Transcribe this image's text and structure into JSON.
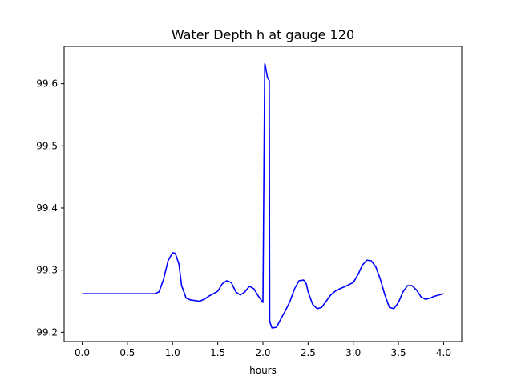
{
  "chart_data": {
    "type": "line",
    "title": "Water Depth h at gauge 120",
    "xlabel": "hours",
    "ylabel": "",
    "xlim": [
      -0.2,
      4.2
    ],
    "ylim": [
      99.185,
      99.66
    ],
    "xticks": [
      0.0,
      0.5,
      1.0,
      1.5,
      2.0,
      2.5,
      3.0,
      3.5,
      4.0
    ],
    "xtick_labels": [
      "0.0",
      "0.5",
      "1.0",
      "1.5",
      "2.0",
      "2.5",
      "3.0",
      "3.5",
      "4.0"
    ],
    "yticks": [
      99.2,
      99.3,
      99.4,
      99.5,
      99.6
    ],
    "ytick_labels": [
      "99.2",
      "99.3",
      "99.4",
      "99.5",
      "99.6"
    ],
    "grid": false,
    "line_color": "#0000ff",
    "series": [
      {
        "x": [
          0.0,
          0.2,
          0.4,
          0.6,
          0.8,
          0.85,
          0.9,
          0.95,
          1.0,
          1.03,
          1.07,
          1.1,
          1.15,
          1.2,
          1.3,
          1.35,
          1.4,
          1.5,
          1.55,
          1.6,
          1.65,
          1.7,
          1.75,
          1.8,
          1.85,
          1.9,
          1.95,
          2.0,
          2.02,
          2.025,
          2.05,
          2.07,
          2.075,
          2.08,
          2.1,
          2.15,
          2.2,
          2.25,
          2.3,
          2.35,
          2.4,
          2.45,
          2.48,
          2.5,
          2.55,
          2.6,
          2.65,
          2.7,
          2.75,
          2.8,
          2.85,
          2.9,
          3.0,
          3.05,
          3.1,
          3.15,
          3.2,
          3.25,
          3.3,
          3.35,
          3.4,
          3.45,
          3.5,
          3.55,
          3.6,
          3.65,
          3.7,
          3.75,
          3.8,
          3.85,
          3.9,
          3.95,
          4.0
        ],
        "y": [
          99.262,
          99.262,
          99.262,
          99.262,
          99.262,
          99.265,
          99.285,
          99.315,
          99.328,
          99.327,
          99.31,
          99.275,
          99.255,
          99.252,
          99.25,
          99.253,
          99.258,
          99.266,
          99.278,
          99.283,
          99.28,
          99.265,
          99.26,
          99.265,
          99.274,
          99.27,
          99.258,
          99.248,
          99.632,
          99.63,
          99.61,
          99.605,
          99.22,
          99.215,
          99.207,
          99.208,
          99.222,
          99.235,
          99.25,
          99.27,
          99.283,
          99.284,
          99.278,
          99.265,
          99.245,
          99.238,
          99.24,
          99.25,
          99.26,
          99.266,
          99.27,
          99.273,
          99.28,
          99.292,
          99.308,
          99.316,
          99.315,
          99.305,
          99.285,
          99.26,
          99.24,
          99.238,
          99.248,
          99.265,
          99.275,
          99.275,
          99.268,
          99.257,
          99.253,
          99.255,
          99.258,
          99.26,
          99.262
        ]
      }
    ]
  }
}
